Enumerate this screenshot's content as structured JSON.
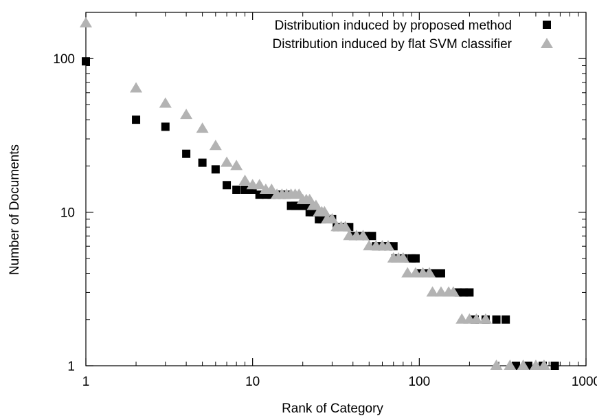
{
  "chart_data": {
    "type": "scatter",
    "title": "",
    "xlabel": "Rank of Category",
    "ylabel": "Number of Documents",
    "xscale": "log",
    "yscale": "log",
    "xlim": [
      1,
      1000
    ],
    "ylim": [
      1,
      200
    ],
    "x_ticks": [
      1,
      10,
      100,
      1000
    ],
    "x_tick_labels": [
      "1",
      "10",
      "100",
      "1000"
    ],
    "y_ticks": [
      1,
      10,
      100
    ],
    "y_tick_labels": [
      "1",
      "10",
      "100"
    ],
    "grid": false,
    "legend_position": "top-right",
    "series": [
      {
        "name": "Distribution induced by proposed method",
        "marker": "square",
        "color": "#000000",
        "points": [
          [
            1,
            96
          ],
          [
            2,
            40
          ],
          [
            3,
            36
          ],
          [
            4,
            24
          ],
          [
            5,
            21
          ],
          [
            6,
            19
          ],
          [
            7,
            15
          ],
          [
            8,
            14
          ],
          [
            9,
            14
          ],
          [
            10,
            14
          ],
          [
            11,
            13
          ],
          [
            12,
            13
          ],
          [
            13,
            13
          ],
          [
            14,
            13
          ],
          [
            15,
            13
          ],
          [
            16,
            13
          ],
          [
            17,
            11
          ],
          [
            18,
            11
          ],
          [
            19,
            11
          ],
          [
            20,
            11
          ],
          [
            21,
            11
          ],
          [
            22,
            10
          ],
          [
            23,
            10
          ],
          [
            24,
            10
          ],
          [
            25,
            9
          ],
          [
            26,
            9
          ],
          [
            27,
            9
          ],
          [
            28,
            9
          ],
          [
            30,
            9
          ],
          [
            32,
            8
          ],
          [
            34,
            8
          ],
          [
            36,
            8
          ],
          [
            38,
            8
          ],
          [
            40,
            7
          ],
          [
            44,
            7
          ],
          [
            48,
            7
          ],
          [
            52,
            7
          ],
          [
            55,
            6
          ],
          [
            60,
            6
          ],
          [
            65,
            6
          ],
          [
            70,
            6
          ],
          [
            72,
            5
          ],
          [
            80,
            5
          ],
          [
            90,
            5
          ],
          [
            95,
            5
          ],
          [
            100,
            4
          ],
          [
            110,
            4
          ],
          [
            120,
            4
          ],
          [
            130,
            4
          ],
          [
            135,
            4
          ],
          [
            170,
            3
          ],
          [
            185,
            3
          ],
          [
            200,
            3
          ],
          [
            215,
            2
          ],
          [
            250,
            2
          ],
          [
            290,
            2
          ],
          [
            330,
            2
          ],
          [
            380,
            1
          ],
          [
            450,
            1
          ],
          [
            550,
            1
          ],
          [
            650,
            1
          ]
        ]
      },
      {
        "name": "Distribution induced by flat SVM classifier",
        "marker": "triangle",
        "color": "#b3b3b3",
        "points": [
          [
            1,
            170
          ],
          [
            2,
            64
          ],
          [
            3,
            51
          ],
          [
            4,
            43
          ],
          [
            5,
            35
          ],
          [
            6,
            27
          ],
          [
            7,
            21
          ],
          [
            8,
            20
          ],
          [
            9,
            16
          ],
          [
            10,
            15
          ],
          [
            11,
            15
          ],
          [
            12,
            14
          ],
          [
            13,
            14
          ],
          [
            14,
            13
          ],
          [
            15,
            13
          ],
          [
            16,
            13
          ],
          [
            17,
            13
          ],
          [
            18,
            13
          ],
          [
            19,
            13
          ],
          [
            20,
            12
          ],
          [
            21,
            12
          ],
          [
            22,
            12
          ],
          [
            23,
            11
          ],
          [
            24,
            11
          ],
          [
            25,
            10
          ],
          [
            26,
            10
          ],
          [
            27,
            10
          ],
          [
            28,
            9
          ],
          [
            30,
            9
          ],
          [
            32,
            8
          ],
          [
            34,
            8
          ],
          [
            36,
            8
          ],
          [
            38,
            7
          ],
          [
            42,
            7
          ],
          [
            46,
            7
          ],
          [
            50,
            6
          ],
          [
            55,
            6
          ],
          [
            60,
            6
          ],
          [
            65,
            6
          ],
          [
            70,
            5
          ],
          [
            75,
            5
          ],
          [
            80,
            5
          ],
          [
            85,
            4
          ],
          [
            95,
            4
          ],
          [
            105,
            4
          ],
          [
            115,
            4
          ],
          [
            120,
            3
          ],
          [
            135,
            3
          ],
          [
            150,
            3
          ],
          [
            160,
            3
          ],
          [
            180,
            2
          ],
          [
            200,
            2
          ],
          [
            220,
            2
          ],
          [
            250,
            2
          ],
          [
            290,
            1
          ],
          [
            350,
            1
          ],
          [
            420,
            1
          ],
          [
            500,
            1
          ],
          [
            560,
            1
          ]
        ]
      }
    ]
  }
}
